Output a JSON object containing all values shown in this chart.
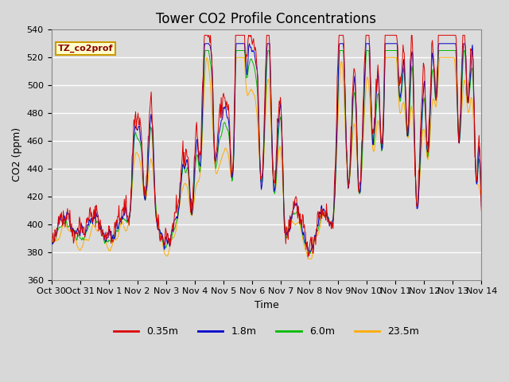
{
  "title": "Tower CO2 Profile Concentrations",
  "xlabel": "Time",
  "ylabel": "CO2 (ppm)",
  "ylim": [
    360,
    540
  ],
  "yticks": [
    360,
    380,
    400,
    420,
    440,
    460,
    480,
    500,
    520,
    540
  ],
  "annotation_text": "TZ_co2prof",
  "annotation_color": "#cc9900",
  "annotation_bg": "#ffffcc",
  "series_labels": [
    "0.35m",
    "1.8m",
    "6.0m",
    "23.5m"
  ],
  "series_colors": [
    "#dd0000",
    "#0000cc",
    "#00bb00",
    "#ffaa00"
  ],
  "fig_bg": "#d8d8d8",
  "plot_bg": "#dcdcdc",
  "grid_color": "#ffffff",
  "x_tick_labels": [
    "Oct 30",
    "Oct 31",
    "Nov 1",
    "Nov 2",
    "Nov 3",
    "Nov 4",
    "Nov 5",
    "Nov 6",
    "Nov 7",
    "Nov 8",
    "Nov 9",
    "Nov 10",
    "Nov 11",
    "Nov 12",
    "Nov 13",
    "Nov 14"
  ],
  "x_tick_days": [
    0,
    1,
    2,
    3,
    4,
    5,
    6,
    7,
    8,
    9,
    10,
    11,
    12,
    13,
    14,
    15
  ],
  "title_fontsize": 12,
  "label_fontsize": 9,
  "tick_fontsize": 8
}
